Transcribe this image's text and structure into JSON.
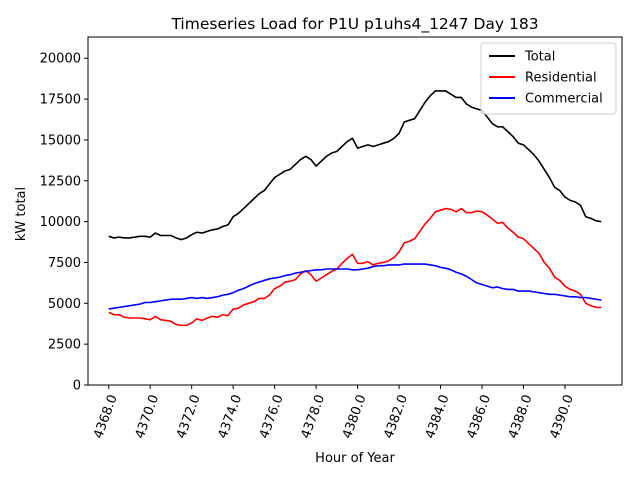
{
  "chart_data": {
    "type": "line",
    "title": "Timeseries Load for P1U p1uhs4_1247  Day 183",
    "xlabel": "Hour of Year",
    "ylabel": "kW total",
    "xlim": [
      4367.0,
      4392.75
    ],
    "ylim": [
      0,
      21300
    ],
    "xticks": [
      4368,
      4370,
      4372,
      4374,
      4376,
      4378,
      4380,
      4382,
      4384,
      4386,
      4388,
      4390
    ],
    "xtick_labels": [
      "4368.0",
      "4370.0",
      "4372.0",
      "4374.0",
      "4376.0",
      "4378.0",
      "4380.0",
      "4382.0",
      "4384.0",
      "4386.0",
      "4388.0",
      "4390.0"
    ],
    "yticks": [
      0,
      2500,
      5000,
      7500,
      10000,
      12500,
      15000,
      17500,
      20000
    ],
    "ytick_labels": [
      "0",
      "2500",
      "5000",
      "7500",
      "10000",
      "12500",
      "15000",
      "17500",
      "20000"
    ],
    "legend_position": "top-right",
    "series": [
      {
        "name": "Total",
        "color": "#000000",
        "points": [
          [
            4368.0,
            9100
          ],
          [
            4368.25,
            9000
          ],
          [
            4368.5,
            9050
          ],
          [
            4368.75,
            9000
          ],
          [
            4369.0,
            9000
          ],
          [
            4369.25,
            9050
          ],
          [
            4369.5,
            9100
          ],
          [
            4369.75,
            9100
          ],
          [
            4370.0,
            9050
          ],
          [
            4370.25,
            9300
          ],
          [
            4370.5,
            9150
          ],
          [
            4370.75,
            9150
          ],
          [
            4371.0,
            9150
          ],
          [
            4371.25,
            9000
          ],
          [
            4371.5,
            8900
          ],
          [
            4371.75,
            9000
          ],
          [
            4372.0,
            9200
          ],
          [
            4372.25,
            9350
          ],
          [
            4372.5,
            9300
          ],
          [
            4372.75,
            9400
          ],
          [
            4373.0,
            9500
          ],
          [
            4373.25,
            9550
          ],
          [
            4373.5,
            9700
          ],
          [
            4373.75,
            9800
          ],
          [
            4374.0,
            10300
          ],
          [
            4374.25,
            10500
          ],
          [
            4374.5,
            10800
          ],
          [
            4374.75,
            11100
          ],
          [
            4375.0,
            11400
          ],
          [
            4375.25,
            11700
          ],
          [
            4375.5,
            11900
          ],
          [
            4375.75,
            12300
          ],
          [
            4376.0,
            12700
          ],
          [
            4376.25,
            12900
          ],
          [
            4376.5,
            13100
          ],
          [
            4376.75,
            13200
          ],
          [
            4377.0,
            13500
          ],
          [
            4377.25,
            13800
          ],
          [
            4377.5,
            14000
          ],
          [
            4377.75,
            13800
          ],
          [
            4378.0,
            13400
          ],
          [
            4378.25,
            13700
          ],
          [
            4378.5,
            14000
          ],
          [
            4378.75,
            14200
          ],
          [
            4379.0,
            14300
          ],
          [
            4379.25,
            14600
          ],
          [
            4379.5,
            14900
          ],
          [
            4379.75,
            15100
          ],
          [
            4380.0,
            14500
          ],
          [
            4380.25,
            14600
          ],
          [
            4380.5,
            14700
          ],
          [
            4380.75,
            14600
          ],
          [
            4381.0,
            14700
          ],
          [
            4381.25,
            14800
          ],
          [
            4381.5,
            14900
          ],
          [
            4381.75,
            15100
          ],
          [
            4382.0,
            15400
          ],
          [
            4382.25,
            16100
          ],
          [
            4382.5,
            16200
          ],
          [
            4382.75,
            16300
          ],
          [
            4383.0,
            16800
          ],
          [
            4383.25,
            17300
          ],
          [
            4383.5,
            17700
          ],
          [
            4383.75,
            18000
          ],
          [
            4384.0,
            18000
          ],
          [
            4384.25,
            18000
          ],
          [
            4384.5,
            17800
          ],
          [
            4384.75,
            17600
          ],
          [
            4385.0,
            17600
          ],
          [
            4385.25,
            17200
          ],
          [
            4385.5,
            17000
          ],
          [
            4385.75,
            16900
          ],
          [
            4386.0,
            16800
          ],
          [
            4386.25,
            16400
          ],
          [
            4386.5,
            16000
          ],
          [
            4386.75,
            15800
          ],
          [
            4387.0,
            15800
          ],
          [
            4387.25,
            15500
          ],
          [
            4387.5,
            15200
          ],
          [
            4387.75,
            14800
          ],
          [
            4388.0,
            14700
          ],
          [
            4388.25,
            14400
          ],
          [
            4388.5,
            14100
          ],
          [
            4388.75,
            13700
          ],
          [
            4389.0,
            13200
          ],
          [
            4389.25,
            12700
          ],
          [
            4389.5,
            12100
          ],
          [
            4389.75,
            11900
          ],
          [
            4390.0,
            11500
          ],
          [
            4390.25,
            11300
          ],
          [
            4390.5,
            11200
          ],
          [
            4390.75,
            11000
          ],
          [
            4391.0,
            10300
          ],
          [
            4391.25,
            10200
          ],
          [
            4391.5,
            10050
          ],
          [
            4391.75,
            10000
          ]
        ]
      },
      {
        "name": "Residential",
        "color": "#ff0000",
        "points": [
          [
            4368.0,
            4450
          ],
          [
            4368.25,
            4300
          ],
          [
            4368.5,
            4300
          ],
          [
            4368.75,
            4150
          ],
          [
            4369.0,
            4100
          ],
          [
            4369.25,
            4100
          ],
          [
            4369.5,
            4100
          ],
          [
            4369.75,
            4050
          ],
          [
            4370.0,
            4000
          ],
          [
            4370.25,
            4200
          ],
          [
            4370.5,
            4000
          ],
          [
            4370.75,
            3950
          ],
          [
            4371.0,
            3900
          ],
          [
            4371.25,
            3700
          ],
          [
            4371.5,
            3650
          ],
          [
            4371.75,
            3650
          ],
          [
            4372.0,
            3800
          ],
          [
            4372.25,
            4050
          ],
          [
            4372.5,
            3950
          ],
          [
            4372.75,
            4100
          ],
          [
            4373.0,
            4200
          ],
          [
            4373.25,
            4150
          ],
          [
            4373.5,
            4300
          ],
          [
            4373.75,
            4250
          ],
          [
            4374.0,
            4650
          ],
          [
            4374.25,
            4700
          ],
          [
            4374.5,
            4900
          ],
          [
            4374.75,
            5000
          ],
          [
            4375.0,
            5100
          ],
          [
            4375.25,
            5300
          ],
          [
            4375.5,
            5300
          ],
          [
            4375.75,
            5500
          ],
          [
            4376.0,
            5900
          ],
          [
            4376.25,
            6050
          ],
          [
            4376.5,
            6300
          ],
          [
            4376.75,
            6350
          ],
          [
            4377.0,
            6450
          ],
          [
            4377.25,
            6800
          ],
          [
            4377.5,
            7000
          ],
          [
            4377.75,
            6750
          ],
          [
            4378.0,
            6350
          ],
          [
            4378.25,
            6550
          ],
          [
            4378.5,
            6750
          ],
          [
            4378.75,
            6950
          ],
          [
            4379.0,
            7100
          ],
          [
            4379.25,
            7450
          ],
          [
            4379.5,
            7750
          ],
          [
            4379.75,
            8000
          ],
          [
            4380.0,
            7450
          ],
          [
            4380.25,
            7450
          ],
          [
            4380.5,
            7550
          ],
          [
            4380.75,
            7350
          ],
          [
            4381.0,
            7450
          ],
          [
            4381.25,
            7500
          ],
          [
            4381.5,
            7600
          ],
          [
            4381.75,
            7800
          ],
          [
            4382.0,
            8150
          ],
          [
            4382.25,
            8700
          ],
          [
            4382.5,
            8800
          ],
          [
            4382.75,
            8950
          ],
          [
            4383.0,
            9400
          ],
          [
            4383.25,
            9850
          ],
          [
            4383.5,
            10200
          ],
          [
            4383.75,
            10600
          ],
          [
            4384.0,
            10700
          ],
          [
            4384.25,
            10800
          ],
          [
            4384.5,
            10750
          ],
          [
            4384.75,
            10600
          ],
          [
            4385.0,
            10800
          ],
          [
            4385.25,
            10550
          ],
          [
            4385.5,
            10550
          ],
          [
            4385.75,
            10650
          ],
          [
            4386.0,
            10600
          ],
          [
            4386.25,
            10400
          ],
          [
            4386.5,
            10150
          ],
          [
            4386.75,
            9900
          ],
          [
            4387.0,
            9950
          ],
          [
            4387.25,
            9600
          ],
          [
            4387.5,
            9350
          ],
          [
            4387.75,
            9050
          ],
          [
            4388.0,
            8950
          ],
          [
            4388.25,
            8650
          ],
          [
            4388.5,
            8350
          ],
          [
            4388.75,
            8050
          ],
          [
            4389.0,
            7500
          ],
          [
            4389.25,
            7150
          ],
          [
            4389.5,
            6600
          ],
          [
            4389.75,
            6400
          ],
          [
            4390.0,
            6050
          ],
          [
            4390.25,
            5850
          ],
          [
            4390.5,
            5750
          ],
          [
            4390.75,
            5550
          ],
          [
            4391.0,
            5000
          ],
          [
            4391.25,
            4850
          ],
          [
            4391.5,
            4750
          ],
          [
            4391.75,
            4750
          ]
        ]
      },
      {
        "name": "Commercial",
        "color": "#0000ff",
        "points": [
          [
            4368.0,
            4650
          ],
          [
            4368.25,
            4700
          ],
          [
            4368.5,
            4750
          ],
          [
            4368.75,
            4800
          ],
          [
            4369.0,
            4850
          ],
          [
            4369.25,
            4900
          ],
          [
            4369.5,
            4950
          ],
          [
            4369.75,
            5050
          ],
          [
            4370.0,
            5050
          ],
          [
            4370.25,
            5100
          ],
          [
            4370.5,
            5150
          ],
          [
            4370.75,
            5200
          ],
          [
            4371.0,
            5250
          ],
          [
            4371.25,
            5250
          ],
          [
            4371.5,
            5250
          ],
          [
            4371.75,
            5300
          ],
          [
            4372.0,
            5350
          ],
          [
            4372.25,
            5300
          ],
          [
            4372.5,
            5350
          ],
          [
            4372.75,
            5300
          ],
          [
            4373.0,
            5350
          ],
          [
            4373.25,
            5400
          ],
          [
            4373.5,
            5500
          ],
          [
            4373.75,
            5550
          ],
          [
            4374.0,
            5650
          ],
          [
            4374.25,
            5800
          ],
          [
            4374.5,
            5900
          ],
          [
            4374.75,
            6050
          ],
          [
            4375.0,
            6200
          ],
          [
            4375.25,
            6300
          ],
          [
            4375.5,
            6400
          ],
          [
            4375.75,
            6500
          ],
          [
            4376.0,
            6550
          ],
          [
            4376.25,
            6600
          ],
          [
            4376.5,
            6700
          ],
          [
            4376.75,
            6750
          ],
          [
            4377.0,
            6850
          ],
          [
            4377.25,
            6900
          ],
          [
            4377.5,
            6950
          ],
          [
            4377.75,
            7000
          ],
          [
            4378.0,
            7050
          ],
          [
            4378.25,
            7050
          ],
          [
            4378.5,
            7100
          ],
          [
            4378.75,
            7100
          ],
          [
            4379.0,
            7100
          ],
          [
            4379.25,
            7100
          ],
          [
            4379.5,
            7100
          ],
          [
            4379.75,
            7050
          ],
          [
            4380.0,
            7050
          ],
          [
            4380.25,
            7100
          ],
          [
            4380.5,
            7150
          ],
          [
            4380.75,
            7250
          ],
          [
            4381.0,
            7300
          ],
          [
            4381.25,
            7300
          ],
          [
            4381.5,
            7350
          ],
          [
            4381.75,
            7350
          ],
          [
            4382.0,
            7350
          ],
          [
            4382.25,
            7400
          ],
          [
            4382.5,
            7400
          ],
          [
            4382.75,
            7400
          ],
          [
            4383.0,
            7400
          ],
          [
            4383.25,
            7400
          ],
          [
            4383.5,
            7350
          ],
          [
            4383.75,
            7300
          ],
          [
            4384.0,
            7200
          ],
          [
            4384.25,
            7150
          ],
          [
            4384.5,
            7050
          ],
          [
            4384.75,
            6900
          ],
          [
            4385.0,
            6800
          ],
          [
            4385.25,
            6650
          ],
          [
            4385.5,
            6450
          ],
          [
            4385.75,
            6250
          ],
          [
            4386.0,
            6150
          ],
          [
            4386.25,
            6050
          ],
          [
            4386.5,
            5950
          ],
          [
            4386.75,
            6000
          ],
          [
            4387.0,
            5900
          ],
          [
            4387.25,
            5850
          ],
          [
            4387.5,
            5850
          ],
          [
            4387.75,
            5750
          ],
          [
            4388.0,
            5750
          ],
          [
            4388.25,
            5750
          ],
          [
            4388.5,
            5700
          ],
          [
            4388.75,
            5650
          ],
          [
            4389.0,
            5600
          ],
          [
            4389.25,
            5550
          ],
          [
            4389.5,
            5550
          ],
          [
            4389.75,
            5500
          ],
          [
            4390.0,
            5450
          ],
          [
            4390.25,
            5400
          ],
          [
            4390.5,
            5400
          ],
          [
            4390.75,
            5350
          ],
          [
            4391.0,
            5350
          ],
          [
            4391.25,
            5300
          ],
          [
            4391.5,
            5250
          ],
          [
            4391.75,
            5200
          ]
        ]
      }
    ]
  }
}
